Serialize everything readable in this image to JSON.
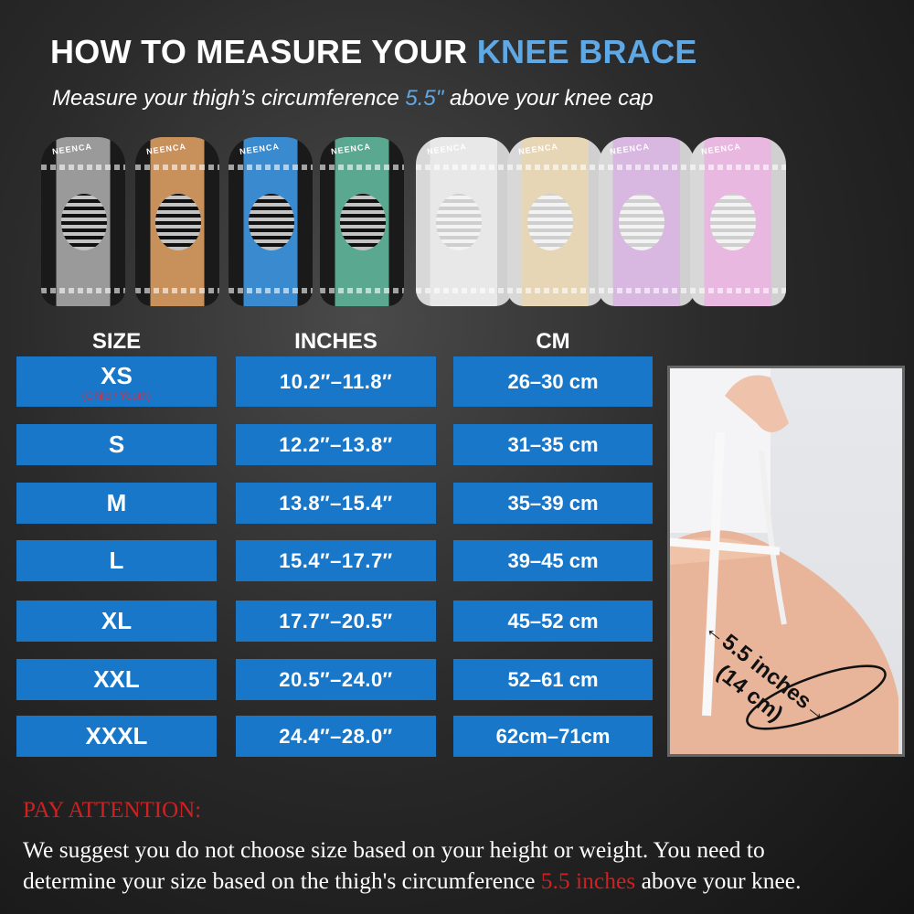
{
  "header": {
    "title_main": "HOW TO MEASURE YOUR ",
    "title_highlight": "KNEE BRACE",
    "subtitle_pre": "Measure your thigh’s circumference ",
    "subtitle_highlight": "5.5\"",
    "subtitle_post": " above your knee cap"
  },
  "products": {
    "logo": "NEENCA",
    "colors": [
      "#9a9a9a",
      "#c8905a",
      "#3a8ad0",
      "#5aa890",
      "#e8e8e8",
      "#e6d6b6",
      "#d8b8e0",
      "#e8b8e0"
    ]
  },
  "table": {
    "headers": [
      "SIZE",
      "INCHES",
      "CM"
    ],
    "rows": [
      {
        "size": "XS",
        "note": "(Child / Youth)",
        "inches": "10.2″–11.8″",
        "cm": "26–30 cm"
      },
      {
        "size": "S",
        "inches": "12.2″–13.8″",
        "cm": "31–35 cm"
      },
      {
        "size": "M",
        "inches": "13.8″–15.4″",
        "cm": "35–39 cm"
      },
      {
        "size": "L",
        "inches": "15.4″–17.7″",
        "cm": "39–45 cm"
      },
      {
        "size": "XL",
        "inches": "17.7″–20.5″",
        "cm": "45–52 cm"
      },
      {
        "size": "XXL",
        "inches": "20.5″–24.0″",
        "cm": "52–61 cm"
      },
      {
        "size": "XXXL",
        "inches": "24.4″–28.0″",
        "cm": "62cm–71cm"
      }
    ]
  },
  "photo": {
    "label_line1": "←5.5 inches→",
    "label_line2": "(14 cm)"
  },
  "attention": {
    "heading": "PAY ATTENTION:",
    "line1": "We suggest you do not choose size based on your height or weight. You need to",
    "line2_pre": "determine your size based on the thigh's circumference ",
    "line2_highlight": "5.5 inches",
    "line2_post": " above your knee."
  },
  "colors": {
    "cell_blue": "#1877c9",
    "accent_blue": "#5fa8e6",
    "warning_red": "#d02020"
  }
}
